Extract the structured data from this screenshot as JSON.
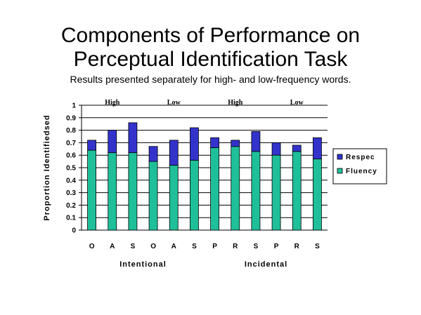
{
  "chart_data": {
    "type": "bar",
    "stacked": true,
    "title": "Components of Performance on Perceptual Identification Task",
    "title_lines": [
      "Components of Performance on",
      "Perceptual Identification Task"
    ],
    "subtitle": "Results presented separately for high- and low-frequency words.",
    "ylabel": "Proportion Identifiedsed",
    "ylim": [
      0,
      1
    ],
    "yticks": [
      "0",
      "0.1",
      "0.2",
      "0.3",
      "0.4",
      "0.5",
      "0.6",
      "0.7",
      "0.8",
      "0.9",
      "1"
    ],
    "categories": [
      "O",
      "A",
      "S",
      "O",
      "A",
      "S",
      "P",
      "R",
      "S",
      "P",
      "R",
      "S"
    ],
    "groups": [
      {
        "label": "Intentional",
        "start": 0,
        "end": 5
      },
      {
        "label": "Incidental",
        "start": 6,
        "end": 11
      }
    ],
    "frequency_labels": [
      {
        "label": "High",
        "start": 0,
        "end": 2
      },
      {
        "label": "Low",
        "start": 3,
        "end": 5
      },
      {
        "label": "High",
        "start": 6,
        "end": 8
      },
      {
        "label": "Low",
        "start": 9,
        "end": 11
      }
    ],
    "series": [
      {
        "name": "Fluency",
        "color": "#1fbf99",
        "values": [
          0.64,
          0.62,
          0.62,
          0.55,
          0.52,
          0.56,
          0.66,
          0.67,
          0.63,
          0.6,
          0.63,
          0.57
        ]
      },
      {
        "name": "Respec",
        "color": "#3333cc",
        "values": [
          0.08,
          0.18,
          0.24,
          0.12,
          0.2,
          0.26,
          0.08,
          0.05,
          0.16,
          0.1,
          0.05,
          0.17
        ]
      }
    ],
    "grid": true,
    "legend": "right"
  }
}
